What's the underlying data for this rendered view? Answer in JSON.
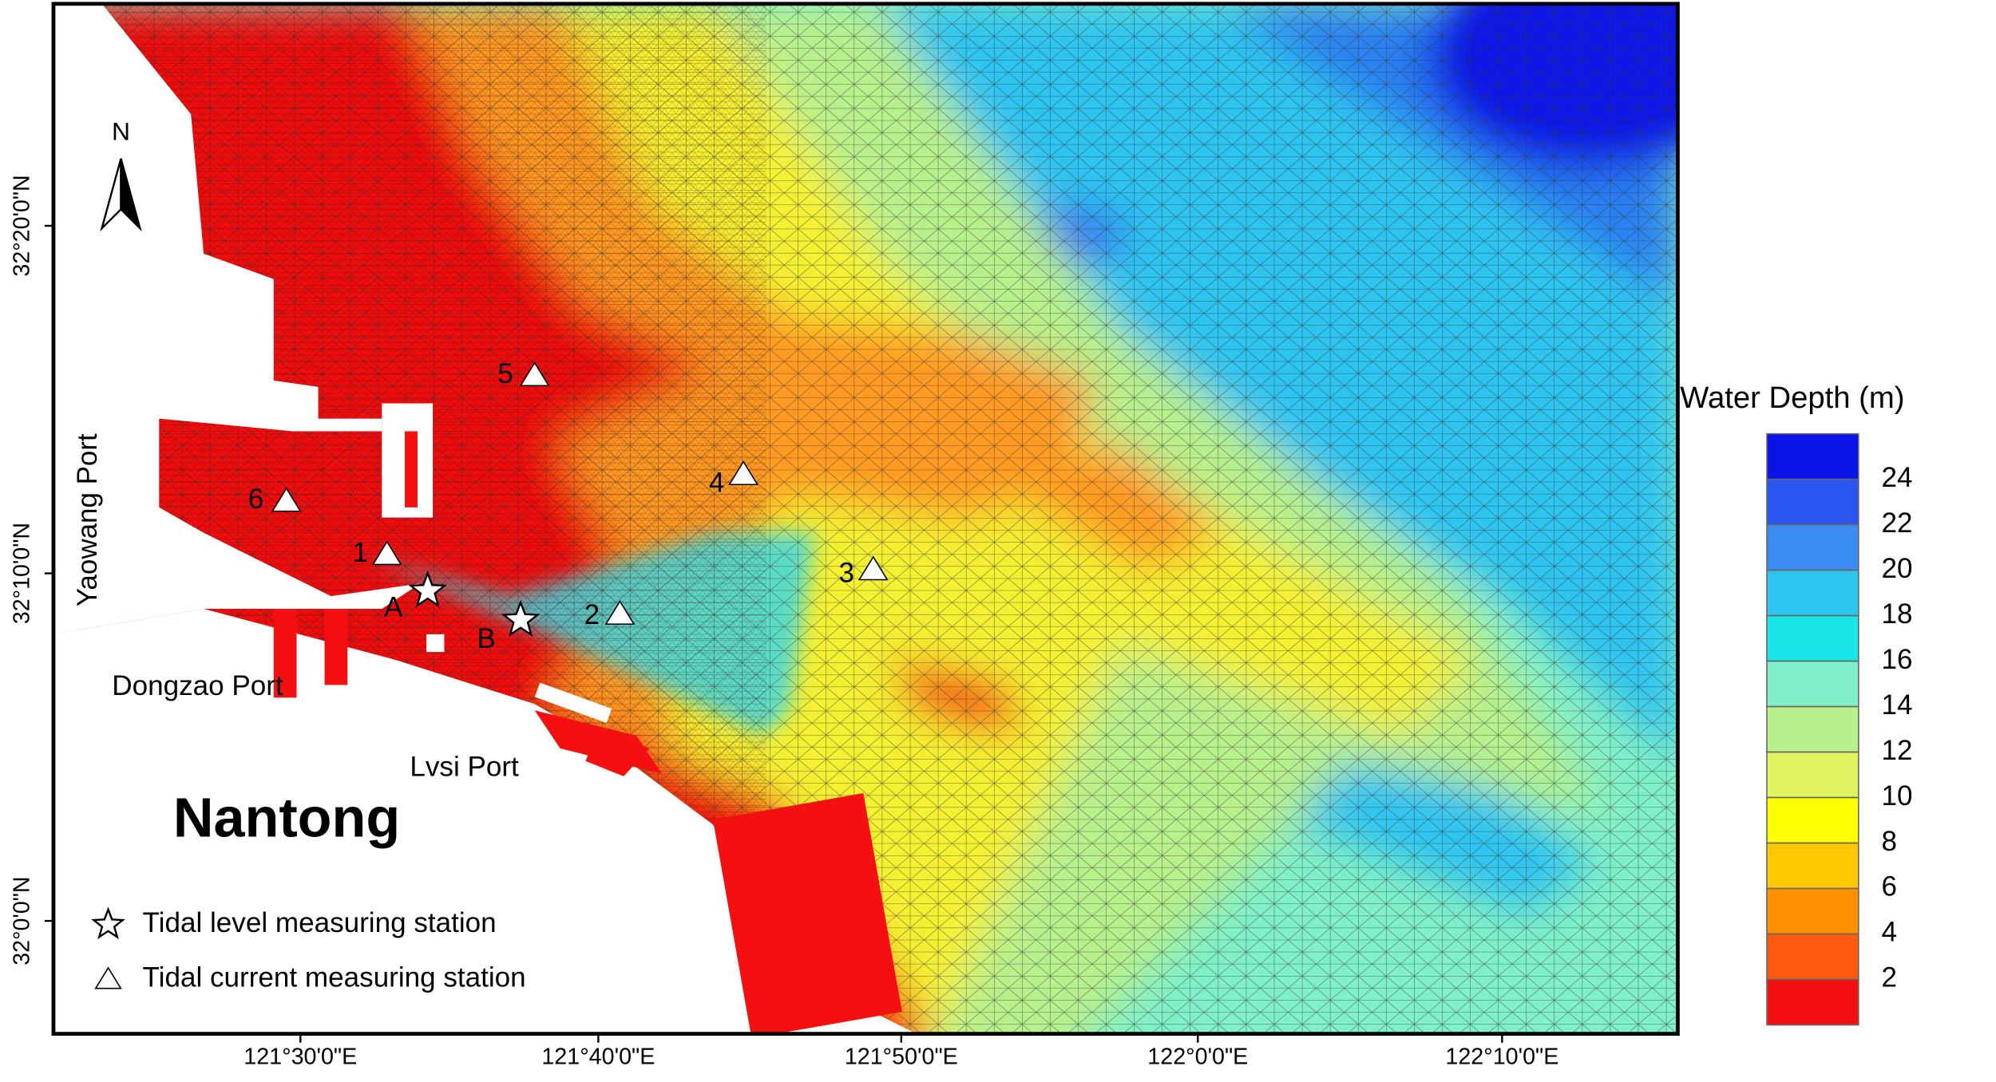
{
  "map": {
    "x_ticks": [
      "121°30'0\"E",
      "121°40'0\"E",
      "121°50'0\"E",
      "122°0'0\"E",
      "122°10'0\"E"
    ],
    "y_ticks": [
      "32°20'0\"N",
      "32°10'0\"N",
      "32°0'0\"N"
    ],
    "north": "N",
    "place_labels": [
      "Yaowang Port",
      "Dongzao Port",
      "Lvsi Port",
      "Nantong"
    ],
    "current_stations": [
      "1",
      "2",
      "3",
      "4",
      "5",
      "6"
    ],
    "level_stations": [
      "A",
      "B"
    ],
    "legend": [
      "Tidal level measuring station",
      "Tidal current measuring station"
    ],
    "colorbar": {
      "title": "Water Depth (m)",
      "labels": [
        24,
        22,
        20,
        18,
        16,
        14,
        12,
        10,
        8,
        6,
        4,
        2
      ],
      "colors": [
        "#0a14e8",
        "#2a55f0",
        "#3a8cf0",
        "#2ec4f0",
        "#1ae6ea",
        "#80f0c8",
        "#b8f08c",
        "#e0f460",
        "#ffff00",
        "#ffc800",
        "#ff9000",
        "#ff5a10",
        "#f41010"
      ]
    }
  }
}
